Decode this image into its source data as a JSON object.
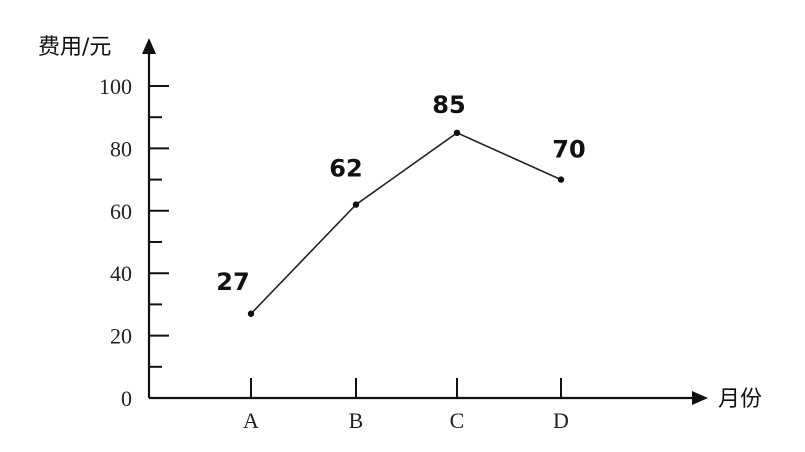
{
  "chart_data": {
    "type": "line",
    "ylabel": "费用/元",
    "xlabel": "月份",
    "categories": [
      "A",
      "B",
      "C",
      "D"
    ],
    "y_ticks": [
      "0",
      "20",
      "40",
      "60",
      "80",
      "100"
    ],
    "series": [
      {
        "values": [
          27,
          62,
          85,
          70
        ],
        "labels": [
          "27",
          "62",
          "85",
          "70"
        ]
      }
    ],
    "ylim": [
      0,
      100
    ],
    "y_minor_step": 10,
    "grid": false,
    "legend": "none",
    "colors": {
      "line": "#222222",
      "axis": "#111111"
    }
  }
}
